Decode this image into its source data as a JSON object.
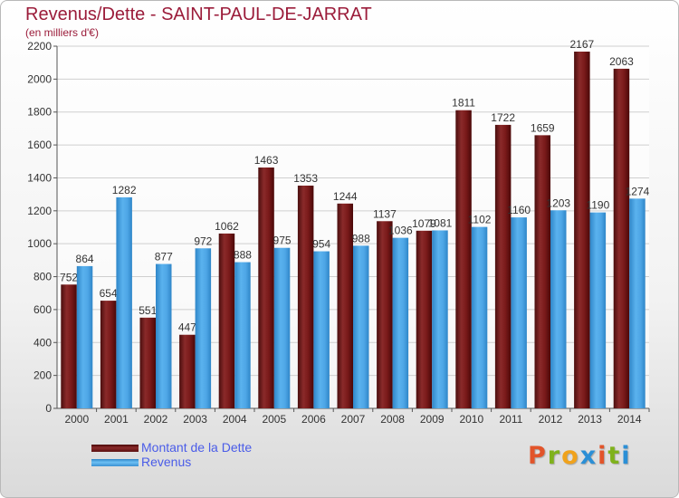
{
  "header": {
    "title": "Revenus/Dette - SAINT-PAUL-DE-JARRAT",
    "subtitle": "(en milliers d'€)"
  },
  "chart_data": {
    "type": "bar",
    "title": "Revenus/Dette - SAINT-PAUL-DE-JARRAT",
    "subtitle": "(en milliers d'€)",
    "xlabel": "",
    "ylabel": "",
    "ylim": [
      0,
      2200
    ],
    "yticks": [
      0,
      200,
      400,
      600,
      800,
      1000,
      1200,
      1400,
      1600,
      1800,
      2000,
      2200
    ],
    "grid": true,
    "legend_position": "bottom-left",
    "categories": [
      "2000",
      "2001",
      "2002",
      "2003",
      "2004",
      "2005",
      "2006",
      "2007",
      "2008",
      "2009",
      "2010",
      "2011",
      "2012",
      "2013",
      "2014"
    ],
    "series": [
      {
        "name": "Montant de la Dette",
        "color": "#7a1818",
        "values": [
          752,
          654,
          551,
          447,
          1062,
          1463,
          1353,
          1244,
          1137,
          1079,
          1811,
          1722,
          1659,
          2167,
          2063
        ]
      },
      {
        "name": "Revenus",
        "color": "#4ea6e6",
        "values": [
          864,
          1282,
          877,
          972,
          888,
          975,
          954,
          988,
          1036,
          1081,
          1102,
          1160,
          1203,
          1190,
          1274
        ]
      }
    ]
  },
  "branding": {
    "logo_text": "Proxiti",
    "logo_colors": [
      "#e2542a",
      "#7fb21c",
      "#f0a21c",
      "#2b8fd6",
      "#e2542a",
      "#7fb21c",
      "#2b8fd6"
    ]
  }
}
